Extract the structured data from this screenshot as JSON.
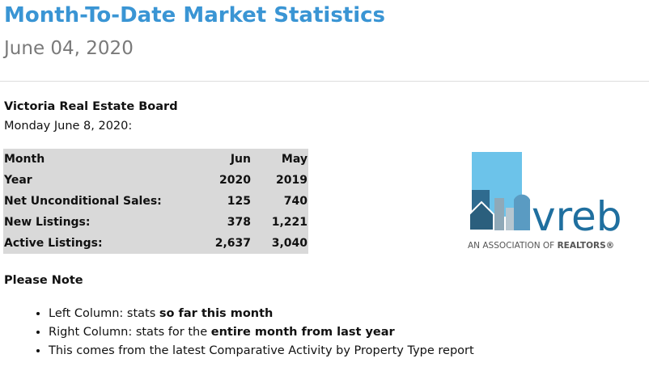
{
  "header": {
    "title": "Month-To-Date Market Statistics",
    "date": "June 04, 2020"
  },
  "board": {
    "name": "Victoria Real Estate Board",
    "date_line": "Monday June 8, 2020:"
  },
  "table": {
    "rows": [
      [
        "Month",
        "Jun",
        "May"
      ],
      [
        "Year",
        "2020",
        "2019"
      ],
      [
        "Net Unconditional Sales:",
        "125",
        "740"
      ],
      [
        "New Listings:",
        "378",
        "1,221"
      ],
      [
        "Active Listings:",
        "2,637",
        "3,040"
      ]
    ]
  },
  "logo": {
    "wordmark": "vreb",
    "tagline": "AN ASSOCIATION OF",
    "tagline_bold": "REALTORS®"
  },
  "note": {
    "heading": "Please Note",
    "bullets": [
      {
        "text": "Left Column: stats ",
        "bold": "so far this month"
      },
      {
        "text": "Right Column: stats for the ",
        "bold": "entire month from last year"
      },
      {
        "text": "This comes from the latest Comparative Activity by Property Type report"
      }
    ]
  }
}
